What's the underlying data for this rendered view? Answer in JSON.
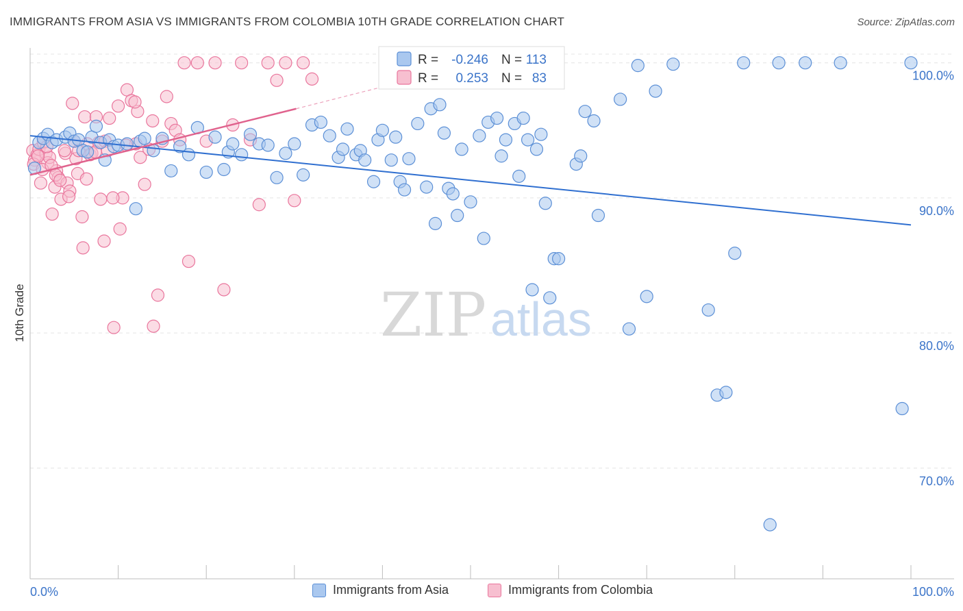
{
  "title": "IMMIGRANTS FROM ASIA VS IMMIGRANTS FROM COLOMBIA 10TH GRADE CORRELATION CHART",
  "source": "Source: ZipAtlas.com",
  "watermark": {
    "zip": "ZIP",
    "atlas": "atlas"
  },
  "colors": {
    "blue": "#5b8fd6",
    "blue_fill": "#aac8ef",
    "blue_line": "#2f6fd0",
    "pink": "#e9759c",
    "pink_fill": "#f7bfd0",
    "pink_line": "#e0628d",
    "label_blue": "#3b74c9"
  },
  "legend": {
    "rows": [
      {
        "r_label": "R =",
        "r_value": "-0.246",
        "n_label": "N =",
        "n_value": "113"
      },
      {
        "r_label": "R =",
        "r_value": "0.253",
        "n_label": "N =",
        "n_value": "83"
      }
    ]
  },
  "bottom_legend": {
    "asia": "Immigrants from Asia",
    "colombia": "Immigrants from Colombia"
  },
  "chart_data": {
    "type": "scatter",
    "ylabel": "10th Grade",
    "x_tick_labels": {
      "min": "0.0%",
      "max": "100.0%"
    },
    "y_tick_labels": [
      "100.0%",
      "90.0%",
      "80.0%",
      "70.0%"
    ],
    "y_ticks": [
      100,
      90,
      80,
      70
    ],
    "xlim": [
      0,
      100
    ],
    "ylim": [
      61.8,
      101.1
    ],
    "series": [
      {
        "name": "Immigrants from Asia",
        "trend": {
          "x0": 0,
          "y0": 94.6,
          "x1": 100,
          "y1": 88.0
        },
        "points": [
          [
            0.5,
            92.2
          ],
          [
            1,
            94.1
          ],
          [
            1.5,
            94.4
          ],
          [
            2,
            94.7
          ],
          [
            2.5,
            94.1
          ],
          [
            3,
            94.3
          ],
          [
            4,
            94.5
          ],
          [
            4.5,
            94.8
          ],
          [
            5,
            94.2
          ],
          [
            5.5,
            94.3
          ],
          [
            6,
            93.5
          ],
          [
            6.5,
            93.4
          ],
          [
            7,
            94.5
          ],
          [
            7.5,
            95.3
          ],
          [
            8,
            94.1
          ],
          [
            8.5,
            92.8
          ],
          [
            9,
            94.3
          ],
          [
            9.5,
            93.8
          ],
          [
            10,
            93.9
          ],
          [
            11,
            94.0
          ],
          [
            12,
            89.2
          ],
          [
            12.5,
            94.2
          ],
          [
            13,
            94.4
          ],
          [
            14,
            93.5
          ],
          [
            15,
            94.4
          ],
          [
            16,
            92.0
          ],
          [
            17,
            93.8
          ],
          [
            18,
            93.2
          ],
          [
            19,
            95.2
          ],
          [
            20,
            91.9
          ],
          [
            21,
            94.5
          ],
          [
            22,
            92.1
          ],
          [
            22.5,
            93.4
          ],
          [
            23,
            94.0
          ],
          [
            24,
            93.2
          ],
          [
            25,
            94.7
          ],
          [
            26,
            94.0
          ],
          [
            27,
            93.9
          ],
          [
            28,
            91.5
          ],
          [
            29,
            93.3
          ],
          [
            30,
            94.0
          ],
          [
            31,
            91.7
          ],
          [
            32,
            95.4
          ],
          [
            33,
            95.6
          ],
          [
            34,
            94.6
          ],
          [
            35,
            93.0
          ],
          [
            35.5,
            93.6
          ],
          [
            36,
            95.1
          ],
          [
            37,
            93.2
          ],
          [
            37.5,
            93.5
          ],
          [
            38,
            92.8
          ],
          [
            39,
            91.2
          ],
          [
            39.5,
            94.3
          ],
          [
            40,
            95.0
          ],
          [
            41,
            92.8
          ],
          [
            41.5,
            94.5
          ],
          [
            42,
            91.2
          ],
          [
            42.5,
            90.6
          ],
          [
            43,
            92.9
          ],
          [
            44,
            95.5
          ],
          [
            45,
            90.8
          ],
          [
            45.5,
            96.6
          ],
          [
            46,
            88.1
          ],
          [
            46.5,
            96.9
          ],
          [
            47,
            94.8
          ],
          [
            47.5,
            90.7
          ],
          [
            48,
            90.3
          ],
          [
            48.5,
            88.7
          ],
          [
            49,
            93.6
          ],
          [
            50,
            89.7
          ],
          [
            51,
            94.6
          ],
          [
            51.5,
            87.0
          ],
          [
            52,
            95.6
          ],
          [
            53,
            95.9
          ],
          [
            53.5,
            93.1
          ],
          [
            54,
            94.3
          ],
          [
            55,
            95.5
          ],
          [
            55.5,
            91.6
          ],
          [
            56,
            95.9
          ],
          [
            56.5,
            94.3
          ],
          [
            57,
            83.2
          ],
          [
            57.5,
            93.6
          ],
          [
            58,
            94.7
          ],
          [
            58.5,
            89.6
          ],
          [
            59,
            82.6
          ],
          [
            59.5,
            85.5
          ],
          [
            60,
            85.5
          ],
          [
            62,
            92.5
          ],
          [
            62.5,
            93.1
          ],
          [
            63,
            96.4
          ],
          [
            64,
            95.7
          ],
          [
            64.5,
            88.7
          ],
          [
            67,
            97.3
          ],
          [
            68,
            80.3
          ],
          [
            69,
            99.8
          ],
          [
            70,
            82.7
          ],
          [
            71,
            97.9
          ],
          [
            73,
            99.9
          ],
          [
            77,
            81.7
          ],
          [
            78,
            75.4
          ],
          [
            79,
            75.6
          ],
          [
            80,
            85.9
          ],
          [
            81,
            100.0
          ],
          [
            84,
            65.8
          ],
          [
            85,
            100.0
          ],
          [
            88,
            100.0
          ],
          [
            92,
            100.0
          ],
          [
            99,
            74.4
          ],
          [
            100,
            100.0
          ]
        ]
      },
      {
        "name": "Immigrants from Colombia",
        "trend": {
          "x0": 0,
          "y0": 91.7,
          "x1": 30.2,
          "y1": 96.6
        },
        "dashed_trend": {
          "x0": 30.2,
          "y0": 96.6,
          "x1": 40.5,
          "y1": 98.3
        },
        "points": [
          [
            0.3,
            93.5
          ],
          [
            0.5,
            92.8
          ],
          [
            0.8,
            93.2
          ],
          [
            1,
            93.6
          ],
          [
            1.2,
            91.1
          ],
          [
            1.5,
            94.1
          ],
          [
            1.8,
            93.3
          ],
          [
            2,
            92.6
          ],
          [
            2.2,
            93.0
          ],
          [
            2.5,
            88.8
          ],
          [
            2.8,
            90.8
          ],
          [
            3,
            92.0
          ],
          [
            3.2,
            91.5
          ],
          [
            3.5,
            89.9
          ],
          [
            4,
            93.3
          ],
          [
            4.2,
            91.1
          ],
          [
            4.5,
            90.5
          ],
          [
            4.8,
            97.0
          ],
          [
            5,
            94.2
          ],
          [
            5.2,
            92.9
          ],
          [
            5.5,
            93.5
          ],
          [
            6,
            86.3
          ],
          [
            6.2,
            96.0
          ],
          [
            6.5,
            94.0
          ],
          [
            6.8,
            93.2
          ],
          [
            7,
            93.3
          ],
          [
            7.5,
            96.0
          ],
          [
            7.8,
            94.1
          ],
          [
            8,
            89.9
          ],
          [
            8.5,
            94.2
          ],
          [
            8.8,
            93.5
          ],
          [
            9,
            95.9
          ],
          [
            9.5,
            80.4
          ],
          [
            10,
            96.8
          ],
          [
            10.2,
            87.7
          ],
          [
            10.5,
            90.0
          ],
          [
            11,
            98.0
          ],
          [
            11.5,
            97.2
          ],
          [
            12,
            94.0
          ],
          [
            12.2,
            96.4
          ],
          [
            12.5,
            93.0
          ],
          [
            13,
            91.0
          ],
          [
            13.5,
            93.6
          ],
          [
            14,
            80.5
          ],
          [
            14.5,
            82.8
          ],
          [
            15,
            94.2
          ],
          [
            15.5,
            97.5
          ],
          [
            16,
            95.5
          ],
          [
            16.5,
            95.0
          ],
          [
            17,
            94.3
          ],
          [
            17.5,
            100.0
          ],
          [
            18,
            85.3
          ],
          [
            19,
            100.0
          ],
          [
            20,
            94.2
          ],
          [
            21,
            100.0
          ],
          [
            22,
            83.2
          ],
          [
            23,
            95.4
          ],
          [
            24,
            100.0
          ],
          [
            25,
            94.3
          ],
          [
            26,
            89.5
          ],
          [
            27,
            100.0
          ],
          [
            28,
            98.7
          ],
          [
            29,
            100.0
          ],
          [
            30,
            89.8
          ],
          [
            31,
            100.0
          ],
          [
            32,
            98.8
          ],
          [
            0.4,
            92.5
          ],
          [
            0.9,
            93.1
          ],
          [
            1.4,
            92.1
          ],
          [
            1.9,
            93.8
          ],
          [
            2.4,
            92.4
          ],
          [
            2.9,
            91.7
          ],
          [
            3.4,
            91.3
          ],
          [
            3.9,
            93.5
          ],
          [
            4.4,
            90.1
          ],
          [
            5.4,
            91.8
          ],
          [
            5.9,
            88.6
          ],
          [
            6.4,
            91.4
          ],
          [
            7.4,
            93.4
          ],
          [
            8.4,
            86.8
          ],
          [
            9.4,
            90.0
          ],
          [
            10.9,
            93.9
          ],
          [
            11.9,
            97.1
          ],
          [
            13.9,
            95.7
          ]
        ]
      }
    ]
  }
}
